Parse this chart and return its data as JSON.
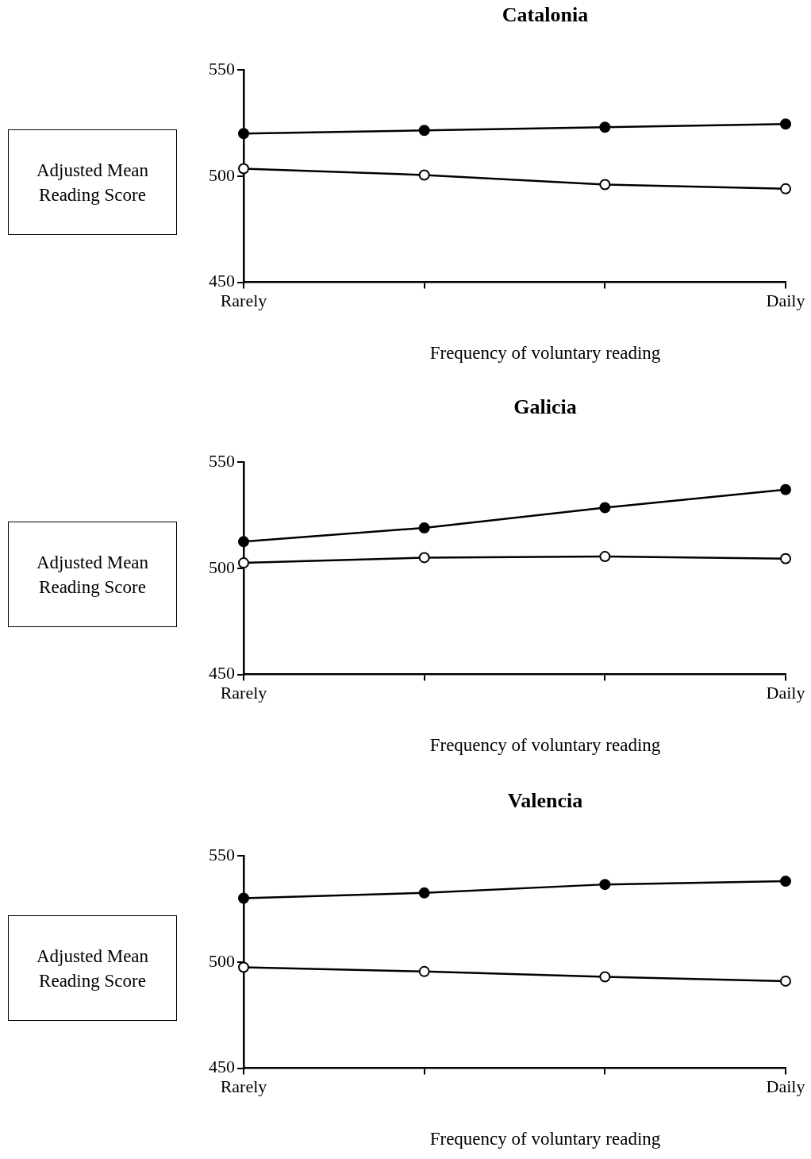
{
  "chart_data": [
    {
      "type": "line",
      "title": "Catalonia",
      "xlabel": "Frequency of voluntary reading",
      "ylabel": "Adjusted Mean Reading Score",
      "categories": [
        "Rarely",
        null,
        null,
        "Daily"
      ],
      "ylim": [
        450,
        550
      ],
      "yticks": [
        450,
        500,
        550
      ],
      "grid": false,
      "legend": false,
      "marker": "circle",
      "series": [
        {
          "color": "#000000",
          "values": [
            520,
            521.5,
            523,
            524.5
          ]
        },
        {
          "color": "#000000",
          "values": [
            503.5,
            500.5,
            496,
            494
          ]
        }
      ]
    },
    {
      "type": "line",
      "title": "Galicia",
      "xlabel": "Frequency of voluntary reading",
      "ylabel": "Adjusted Mean Reading Score",
      "categories": [
        "Rarely",
        null,
        null,
        "Daily"
      ],
      "ylim": [
        450,
        550
      ],
      "yticks": [
        450,
        500,
        550
      ],
      "grid": false,
      "legend": false,
      "marker": "circle",
      "series": [
        {
          "color": "#000000",
          "values": [
            512.5,
            519,
            528.5,
            537
          ]
        },
        {
          "color": "#000000",
          "values": [
            502.5,
            505,
            505.5,
            504.5
          ]
        }
      ]
    },
    {
      "type": "line",
      "title": "Valencia",
      "xlabel": "Frequency of voluntary reading",
      "ylabel": "Adjusted Mean Reading Score",
      "categories": [
        "Rarely",
        null,
        null,
        "Daily"
      ],
      "ylim": [
        450,
        550
      ],
      "yticks": [
        450,
        500,
        550
      ],
      "grid": false,
      "legend": false,
      "marker": "circle",
      "series": [
        {
          "color": "#000000",
          "values": [
            530,
            532.5,
            536.5,
            538
          ]
        },
        {
          "color": "#000000",
          "values": [
            497.5,
            495.5,
            493,
            491
          ]
        }
      ]
    }
  ]
}
